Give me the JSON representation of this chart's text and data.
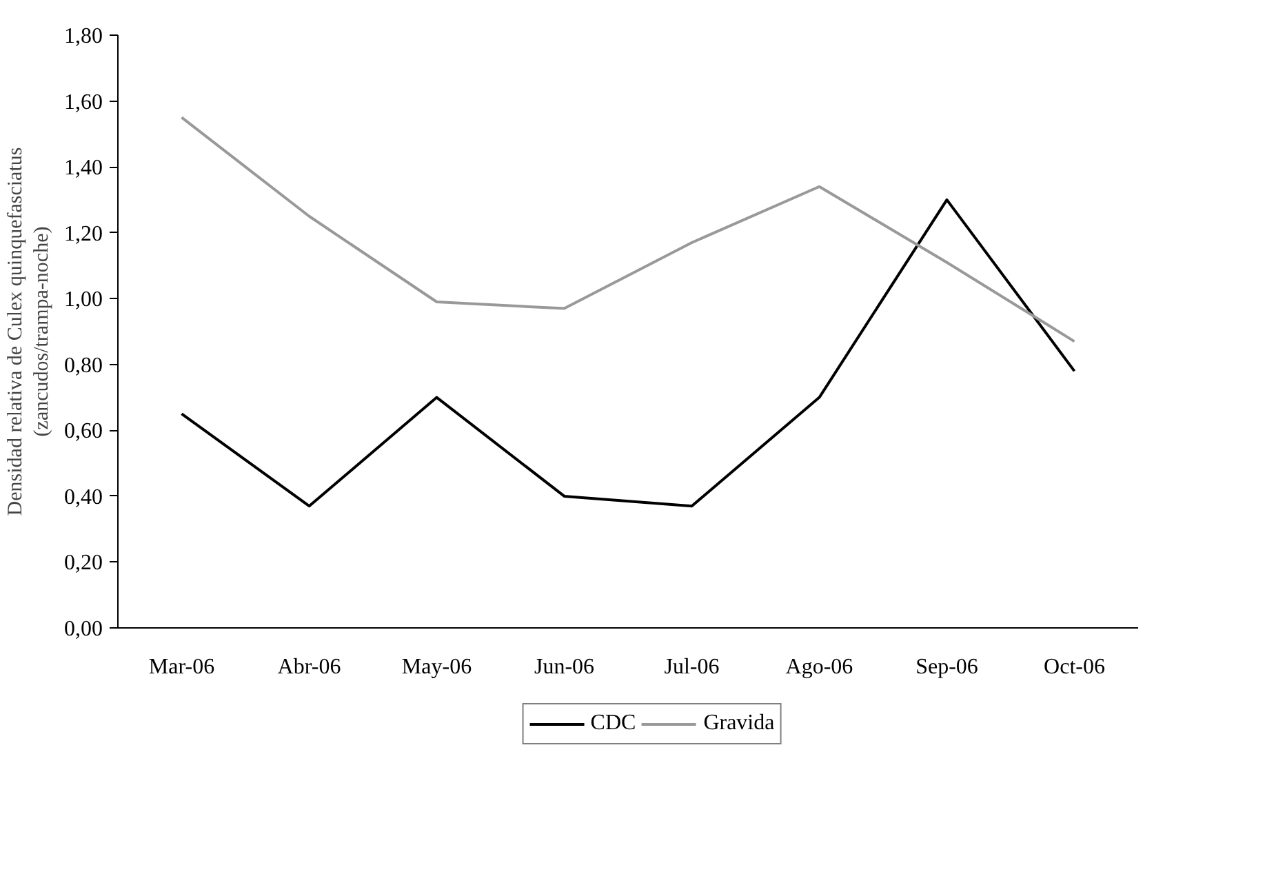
{
  "chart_data": {
    "type": "line",
    "ylabel": "Densidad relativa de Culex quinquefasciatus (zancudos/trampa-noche)",
    "categories": [
      "Mar-06",
      "Abr-06",
      "May-06",
      "Jun-06",
      "Jul-06",
      "Ago-06",
      "Sep-06",
      "Oct-06"
    ],
    "series": [
      {
        "name": "CDC",
        "color": "#000000",
        "values": [
          0.65,
          0.37,
          0.7,
          0.4,
          0.37,
          0.7,
          1.3,
          0.78
        ]
      },
      {
        "name": "Gravida",
        "color": "#999999",
        "values": [
          1.55,
          1.25,
          0.99,
          0.97,
          1.17,
          1.34,
          1.11,
          0.87
        ]
      }
    ],
    "ylim": [
      0,
      1.8
    ],
    "yticks": [
      {
        "value": 0,
        "label": "0,00"
      },
      {
        "value": 0.2,
        "label": "0,20"
      },
      {
        "value": 0.4,
        "label": "0,40"
      },
      {
        "value": 0.6,
        "label": "0,60"
      },
      {
        "value": 0.8,
        "label": "0,80"
      },
      {
        "value": 1.0,
        "label": "1,00"
      },
      {
        "value": 1.2,
        "label": "1,20"
      },
      {
        "value": 1.4,
        "label": "1,40"
      },
      {
        "value": 1.6,
        "label": "1,60"
      },
      {
        "value": 1.8,
        "label": "1,80"
      }
    ],
    "grid": false,
    "legend": "bottom"
  }
}
